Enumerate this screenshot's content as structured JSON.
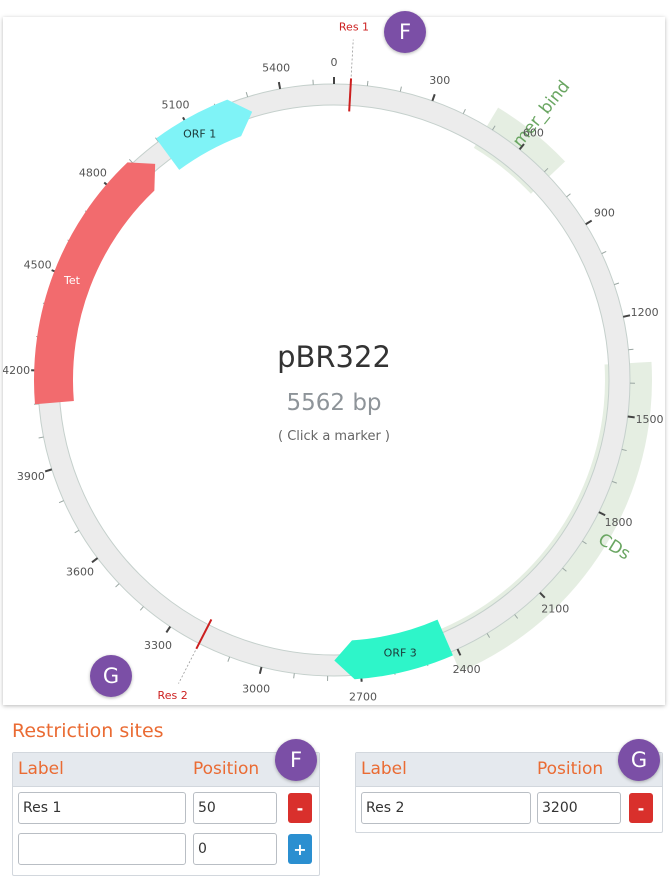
{
  "plasmid": {
    "name": "pBR322",
    "length_label": "5562 bp",
    "hint": "( Click a marker )",
    "length_bp": 5562
  },
  "tick_labels": [
    "0",
    "300",
    "600",
    "900",
    "1200",
    "1500",
    "1800",
    "2100",
    "2400",
    "2700",
    "3000",
    "3300",
    "3600",
    "3900",
    "4200",
    "4500",
    "4800",
    "5100",
    "5400"
  ],
  "features": [
    {
      "label": "ORF 1",
      "start": 5000,
      "end": 5300,
      "type": "arrow",
      "color": "#7ff3f7"
    },
    {
      "label": "Tet",
      "start": 4100,
      "end": 4950,
      "type": "arrow",
      "color": "#f26b6e"
    },
    {
      "label": "ORF 3",
      "start": 2420,
      "end": 2780,
      "type": "arrow",
      "color": "#2ef5c9"
    },
    {
      "label": "primer_bind",
      "start": 480,
      "end": 720,
      "type": "band",
      "color": "#cfe0cb"
    },
    {
      "label": "CDs",
      "start": 1340,
      "end": 2420,
      "type": "band",
      "color": "#cfe0cb"
    }
  ],
  "sites": [
    {
      "label": "Res 1",
      "position": 50,
      "color": "#cc1f1f"
    },
    {
      "label": "Res 2",
      "position": 3200,
      "color": "#cc1f1f"
    }
  ],
  "badges": {
    "f": "F",
    "g": "G"
  },
  "restriction_title": "Restriction sites",
  "table_f": {
    "col_label": "Label",
    "col_position": "Position",
    "rows": [
      {
        "label": "Res 1",
        "position": "50",
        "action": "-"
      },
      {
        "label": "",
        "position": "0",
        "action": "+"
      }
    ]
  },
  "table_g": {
    "col_label": "Label",
    "col_position": "Position",
    "rows": [
      {
        "label": "Res 2",
        "position": "3200",
        "action": "-"
      }
    ]
  }
}
